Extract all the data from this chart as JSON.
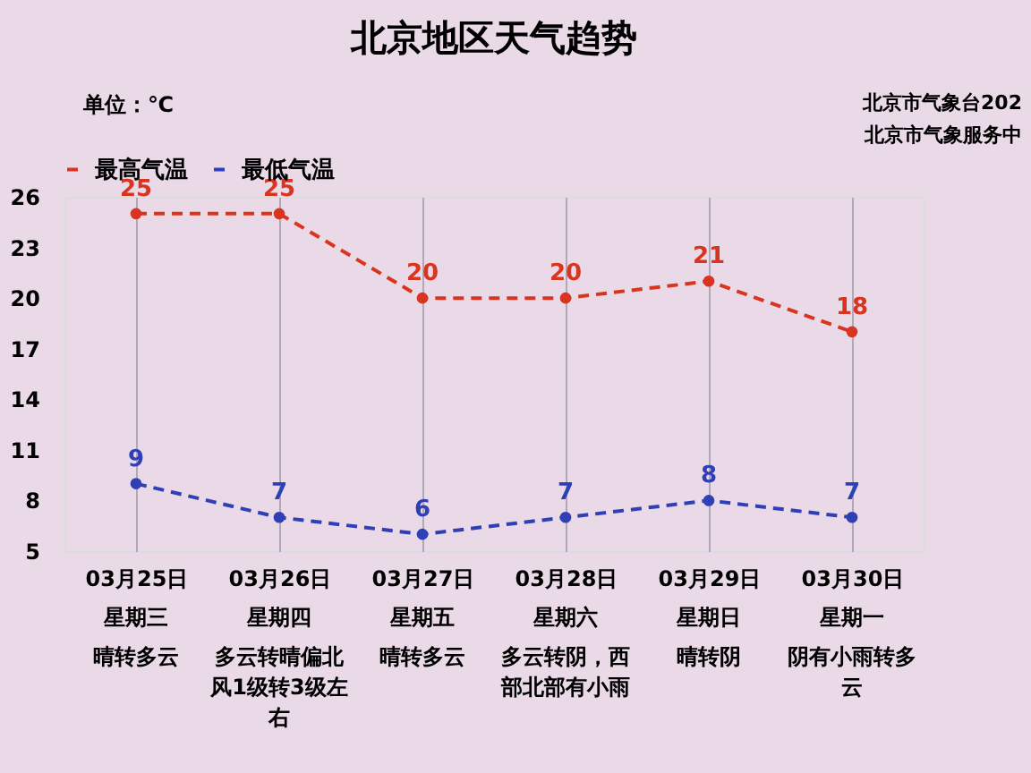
{
  "chart_data": {
    "type": "line",
    "title": "北京地区天气趋势",
    "ylabel": "单位：℃",
    "categories": [
      "03月25日",
      "03月26日",
      "03月27日",
      "03月28日",
      "03月29日",
      "03月30日"
    ],
    "series": [
      {
        "name": "最高气温",
        "color": "#d9341f",
        "values": [
          25,
          25,
          20,
          20,
          21,
          18
        ]
      },
      {
        "name": "最低气温",
        "color": "#2f3fb5",
        "values": [
          9,
          7,
          6,
          7,
          8,
          7
        ]
      }
    ],
    "ylim": [
      5,
      26
    ],
    "yticks": [
      5,
      8,
      11,
      14,
      17,
      20,
      23,
      26
    ],
    "data_labels": true,
    "marker": "circle",
    "line_style": "dashed",
    "grid": "x",
    "legend": "top left",
    "annotations": [
      "北京市气象台202",
      "北京市气象服务中",
      "星期三",
      "晴转多云",
      "星期四",
      "多云转晴偏北风1级转3级左右",
      "星期五",
      "晴转多云",
      "星期六",
      "多云转阴，西部北部有小雨",
      "星期日",
      "晴转阴",
      "星期一",
      "阴有小雨转多云"
    ]
  }
}
